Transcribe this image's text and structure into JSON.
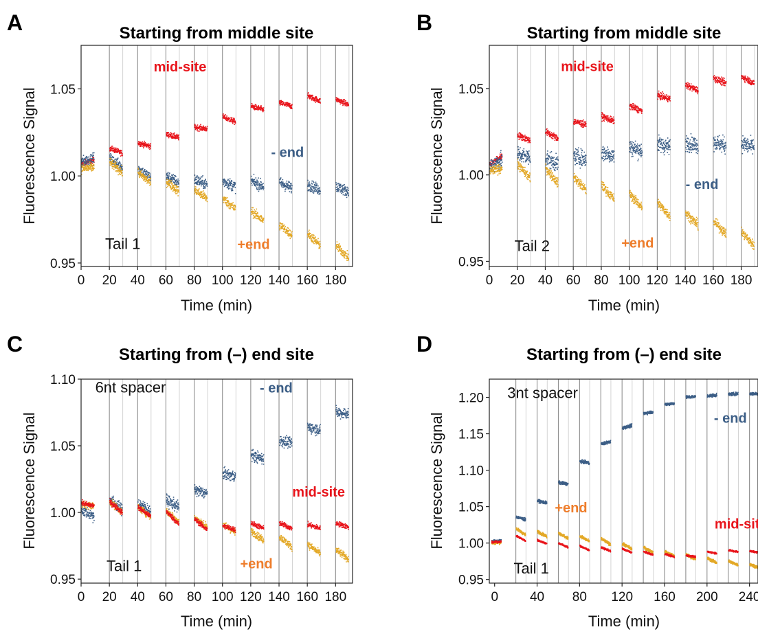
{
  "colors": {
    "mid": "#e8141b",
    "minus": "#3c5e86",
    "plus": "#e3a826",
    "plus_label": "#ee7d2b"
  },
  "chart_data": [
    {
      "type": "scatter",
      "panel": "A",
      "title": "Starting from middle site",
      "xlabel": "Time (min)",
      "ylabel": "Fluorescence Signal",
      "xlim": [
        0,
        192
      ],
      "ylim": [
        0.948,
        1.075
      ],
      "xticks": [
        0,
        20,
        40,
        60,
        80,
        100,
        120,
        140,
        160,
        180
      ],
      "yticks": [
        0.95,
        1.0,
        1.05
      ],
      "tag": "Tail 1",
      "segment_starts": [
        0,
        20,
        40,
        60,
        80,
        100,
        120,
        140,
        160,
        180
      ],
      "segment_length": 9.5,
      "series": [
        {
          "name": "mid-site",
          "color_key": "mid",
          "level_start": [
            1.007,
            1.016,
            1.019,
            1.024,
            1.028,
            1.034,
            1.04,
            1.042,
            1.046,
            1.044
          ],
          "level_end": [
            1.009,
            1.013,
            1.017,
            1.022,
            1.027,
            1.031,
            1.038,
            1.04,
            1.043,
            1.041
          ],
          "noise": 0.0015
        },
        {
          "name": "- end",
          "color_key": "minus",
          "level_start": [
            1.008,
            1.01,
            1.004,
            1.0,
            0.998,
            0.997,
            0.997,
            0.996,
            0.995,
            0.994
          ],
          "level_end": [
            1.01,
            1.005,
            0.999,
            0.996,
            0.995,
            0.994,
            0.994,
            0.993,
            0.992,
            0.991
          ],
          "noise": 0.003
        },
        {
          "name": "+end",
          "color_key": "plus",
          "level_start": [
            1.004,
            1.008,
            1.002,
            0.997,
            0.992,
            0.987,
            0.98,
            0.972,
            0.967,
            0.96
          ],
          "level_end": [
            1.005,
            1.002,
            0.996,
            0.991,
            0.987,
            0.981,
            0.974,
            0.966,
            0.96,
            0.953
          ],
          "noise": 0.0025
        }
      ],
      "label_positions": [
        [
          "mid-site",
          70,
          1.06
        ],
        [
          "- end",
          146,
          1.011
        ],
        [
          "+end",
          122,
          0.958
        ]
      ],
      "tag_position": [
        17,
        0.958
      ]
    },
    {
      "type": "scatter",
      "panel": "B",
      "title": "Starting from middle site",
      "xlabel": "Time (min)",
      "ylabel": "Fluorescence Signal",
      "xlim": [
        0,
        192
      ],
      "ylim": [
        0.947,
        1.075
      ],
      "xticks": [
        0,
        20,
        40,
        60,
        80,
        100,
        120,
        140,
        160,
        180
      ],
      "yticks": [
        0.95,
        1.0,
        1.05
      ],
      "tag": "Tail 2",
      "segment_starts": [
        0,
        20,
        40,
        60,
        80,
        100,
        120,
        140,
        160,
        180
      ],
      "segment_length": 9.5,
      "series": [
        {
          "name": "mid-site",
          "color_key": "mid",
          "level_start": [
            1.006,
            1.023,
            1.025,
            1.031,
            1.034,
            1.04,
            1.046,
            1.052,
            1.056,
            1.057
          ],
          "level_end": [
            1.011,
            1.02,
            1.021,
            1.029,
            1.031,
            1.037,
            1.044,
            1.049,
            1.053,
            1.053
          ],
          "noise": 0.0018
        },
        {
          "name": "- end",
          "color_key": "minus",
          "level_start": [
            1.005,
            1.012,
            1.01,
            1.011,
            1.013,
            1.016,
            1.018,
            1.019,
            1.019,
            1.018
          ],
          "level_end": [
            1.009,
            1.01,
            1.006,
            1.009,
            1.011,
            1.014,
            1.016,
            1.017,
            1.017,
            1.016
          ],
          "noise": 0.0045
        },
        {
          "name": "+end",
          "color_key": "plus",
          "level_start": [
            1.002,
            1.006,
            1.004,
            0.999,
            0.994,
            0.989,
            0.984,
            0.978,
            0.973,
            0.967
          ],
          "level_end": [
            1.004,
            0.998,
            0.995,
            0.991,
            0.986,
            0.981,
            0.976,
            0.971,
            0.966,
            0.959
          ],
          "noise": 0.0025
        }
      ],
      "label_positions": [
        [
          "mid-site",
          70,
          1.06
        ],
        [
          "- end",
          152,
          0.992
        ],
        [
          "+end",
          106,
          0.958
        ]
      ],
      "tag_position": [
        18,
        0.956
      ]
    },
    {
      "type": "scatter",
      "panel": "C",
      "title": "Starting from (–) end site",
      "xlabel": "Time (min)",
      "ylabel": "Fluorescence Signal",
      "xlim": [
        0,
        192
      ],
      "ylim": [
        0.947,
        1.1
      ],
      "xticks": [
        0,
        20,
        40,
        60,
        80,
        100,
        120,
        140,
        160,
        180
      ],
      "yticks": [
        0.95,
        1.0,
        1.05,
        1.1
      ],
      "tag": "6nt spacer",
      "tag2": "Tail 1",
      "segment_starts": [
        0,
        20,
        40,
        60,
        80,
        100,
        120,
        140,
        160,
        180
      ],
      "segment_length": 9.5,
      "series": [
        {
          "name": "- end",
          "color_key": "minus",
          "level_start": [
            1.002,
            1.01,
            1.007,
            1.009,
            1.017,
            1.029,
            1.043,
            1.054,
            1.064,
            1.075
          ],
          "level_end": [
            0.997,
            1.002,
            1.001,
            1.004,
            1.014,
            1.027,
            1.04,
            1.052,
            1.062,
            1.074
          ],
          "noise": 0.004
        },
        {
          "name": "+end",
          "color_key": "plus",
          "level_start": [
            1.006,
            1.008,
            1.004,
            1.001,
            0.996,
            0.991,
            0.986,
            0.982,
            0.976,
            0.972
          ],
          "level_end": [
            1.005,
            1.0,
            0.997,
            0.993,
            0.989,
            0.985,
            0.979,
            0.974,
            0.969,
            0.965
          ],
          "noise": 0.0025
        },
        {
          "name": "mid-site",
          "color_key": "mid",
          "level_start": [
            1.007,
            1.008,
            1.004,
            1.001,
            0.995,
            0.99,
            0.992,
            0.992,
            0.991,
            0.992
          ],
          "level_end": [
            1.005,
            1.0,
            0.997,
            0.991,
            0.987,
            0.987,
            0.988,
            0.988,
            0.988,
            0.989
          ],
          "noise": 0.0018
        }
      ],
      "label_positions": [
        [
          "- end",
          138,
          1.09
        ],
        [
          "mid-site",
          168,
          1.012
        ],
        [
          "+end",
          124,
          0.958
        ]
      ],
      "tag_position": [
        10,
        1.09
      ],
      "tag2_position": [
        18,
        0.956
      ]
    },
    {
      "type": "scatter",
      "panel": "D",
      "title": "Starting from (–) end site",
      "xlabel": "Time (min)",
      "ylabel": "Fluorescence Signal",
      "xlim": [
        -5,
        248
      ],
      "ylim": [
        0.945,
        1.225
      ],
      "xticks": [
        0,
        40,
        80,
        120,
        160,
        200,
        240
      ],
      "yticks": [
        0.95,
        1.0,
        1.05,
        1.1,
        1.15,
        1.2
      ],
      "tag": "3nt spacer",
      "tag2": "Tail 1",
      "segment_starts": [
        -3,
        20,
        40,
        60,
        80,
        100,
        120,
        140,
        160,
        180,
        200,
        220,
        240
      ],
      "segment_length": 9.5,
      "series": [
        {
          "name": "- end",
          "color_key": "minus",
          "level_start": [
            1.002,
            1.036,
            1.058,
            1.083,
            1.112,
            1.136,
            1.158,
            1.178,
            1.19,
            1.2,
            1.202,
            1.204,
            1.205
          ],
          "level_end": [
            1.003,
            1.032,
            1.055,
            1.081,
            1.11,
            1.139,
            1.161,
            1.18,
            1.192,
            1.201,
            1.203,
            1.205,
            1.205
          ],
          "noise": 0.002
        },
        {
          "name": "+end",
          "color_key": "plus",
          "level_start": [
            1.0,
            1.02,
            1.016,
            1.014,
            1.01,
            1.006,
            0.999,
            0.994,
            0.988,
            0.984,
            0.979,
            0.975,
            0.971
          ],
          "level_end": [
            1.001,
            1.011,
            1.009,
            1.006,
            1.002,
            0.998,
            0.992,
            0.987,
            0.982,
            0.978,
            0.973,
            0.97,
            0.966
          ],
          "noise": 0.002
        },
        {
          "name": "mid-site",
          "color_key": "mid",
          "level_start": [
            1.001,
            1.01,
            1.004,
            1.0,
            0.996,
            0.994,
            0.992,
            0.988,
            0.985,
            0.983,
            0.988,
            0.99,
            0.989
          ],
          "level_end": [
            1.002,
            1.003,
            0.999,
            0.994,
            0.99,
            0.989,
            0.987,
            0.984,
            0.981,
            0.981,
            0.986,
            0.988,
            0.987
          ],
          "noise": 0.0012
        }
      ],
      "label_positions": [
        [
          "- end",
          222,
          1.165
        ],
        [
          "+end",
          72,
          1.042
        ],
        [
          "mid-site",
          232,
          1.02
        ]
      ],
      "tag_position": [
        12,
        1.199
      ],
      "tag2_position": [
        18,
        0.958
      ]
    }
  ]
}
